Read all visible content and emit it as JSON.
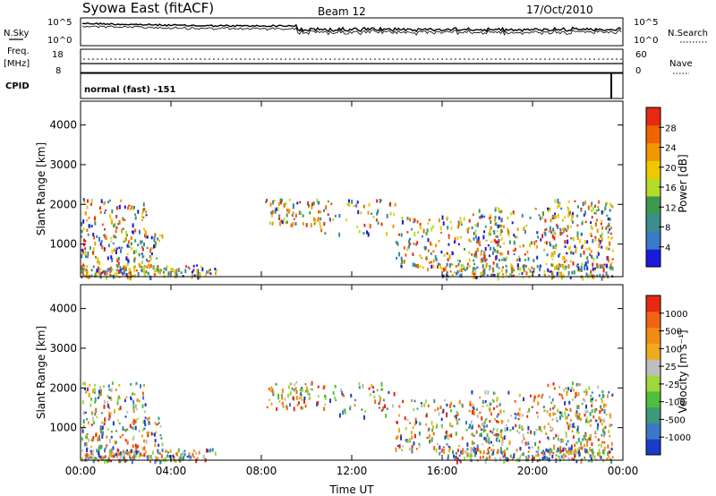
{
  "header": {
    "station": "Syowa East (fitACF)",
    "beam": "Beam 12",
    "date": "17/Oct/2010"
  },
  "strip_labels": {
    "nsky": "N.Sky",
    "freq_line1": "Freq.",
    "freq_line2": "[MHz]",
    "cpid": "CPID",
    "nsearch": "N.Search",
    "nave": "Nave",
    "mode": "normal (fast) -151"
  },
  "noise_axis": {
    "top": "10^5",
    "bottom": "10^0"
  },
  "freq_axis": {
    "top": "18",
    "bottom": "8"
  },
  "nave_axis": {
    "top": "60",
    "bottom": "0"
  },
  "chart_data": [
    {
      "type": "heatmap",
      "quantity": "Power",
      "ylabel": "Slant Range [km]",
      "xlabel": "",
      "ylim": [
        180,
        4600
      ],
      "yticks": [
        "1000",
        "2000",
        "3000",
        "4000"
      ],
      "xticks": [
        "00:00",
        "04:00",
        "08:00",
        "12:00",
        "16:00",
        "20:00",
        "00:00"
      ],
      "colorbar": {
        "label": "Power [dB]",
        "ticks": [
          "4",
          "8",
          "12",
          "16",
          "20",
          "24",
          "28"
        ],
        "colors": [
          "#1a1adc",
          "#3a78c8",
          "#3c8c8c",
          "#3c9a50",
          "#b4dc28",
          "#f0c800",
          "#f09600",
          "#f06400",
          "#e62814"
        ]
      }
    },
    {
      "type": "heatmap",
      "quantity": "Velocity",
      "ylabel": "Slant Range [km]",
      "xlabel": "Time UT",
      "ylim": [
        180,
        4600
      ],
      "yticks": [
        "1000",
        "2000",
        "3000",
        "4000"
      ],
      "xticks": [
        "00:00",
        "04:00",
        "08:00",
        "12:00",
        "16:00",
        "20:00",
        "00:00"
      ],
      "colorbar": {
        "label": "Velocity [m s⁻¹]",
        "ticks": [
          "1000",
          "500",
          "100",
          "25",
          "-25",
          "-100",
          "-500",
          "-1000"
        ],
        "colors": [
          "#1a3cc8",
          "#3c78c8",
          "#3c9a78",
          "#50be3c",
          "#a0d73c",
          "#bebebe",
          "#f0aa1e",
          "#f08c14",
          "#f06414",
          "#e62814"
        ]
      }
    }
  ]
}
